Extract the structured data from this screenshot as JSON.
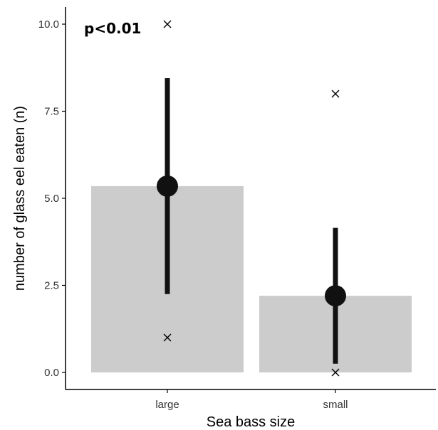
{
  "chart_data": {
    "type": "bar",
    "title": "",
    "xlabel": "Sea bass size",
    "ylabel": "number of glass eel eaten (n)",
    "categories": [
      "large",
      "small"
    ],
    "values": [
      5.35,
      2.2
    ],
    "error_low": [
      2.25,
      0.25
    ],
    "error_high": [
      8.45,
      4.15
    ],
    "outliers": [
      [
        10.0,
        1.0
      ],
      [
        8.0,
        0.0
      ]
    ],
    "ylim": [
      0,
      10
    ],
    "y_ticks": [
      0,
      2.5,
      5,
      7.5,
      10
    ],
    "y_tick_labels": [
      "0.0",
      "2.5",
      "5.0",
      "7.5",
      "10.0"
    ],
    "annotation": "p<0.01",
    "grid": false,
    "colors": {
      "bar": "#cccccc",
      "mean": "#111111",
      "errorbar": "#111111",
      "outlier": "#000000",
      "axis": "#000000"
    }
  }
}
